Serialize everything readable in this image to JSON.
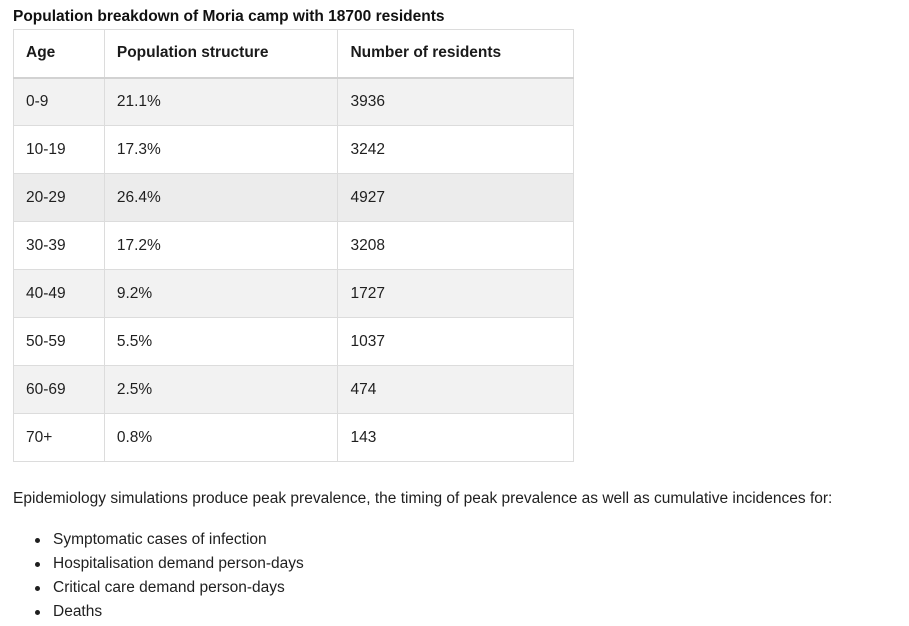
{
  "caption": "Population breakdown of Moria camp with 18700 residents",
  "table": {
    "headers": [
      "Age",
      "Population structure",
      "Number of residents"
    ],
    "rows": [
      [
        "0-9",
        "21.1%",
        "3936"
      ],
      [
        "10-19",
        "17.3%",
        "3242"
      ],
      [
        "20-29",
        "26.4%",
        "4927"
      ],
      [
        "30-39",
        "17.2%",
        "3208"
      ],
      [
        "40-49",
        "9.2%",
        "1727"
      ],
      [
        "50-59",
        "5.5%",
        "1037"
      ],
      [
        "60-69",
        "2.5%",
        "474"
      ],
      [
        "70+",
        "0.8%",
        "143"
      ]
    ]
  },
  "paragraph": "Epidemiology simulations produce peak prevalence, the timing of peak prevalence as well as cumulative incidences for:",
  "bullets": [
    "Symptomatic cases of infection",
    "Hospitalisation demand person-days",
    "Critical care demand person-days",
    "Deaths"
  ]
}
